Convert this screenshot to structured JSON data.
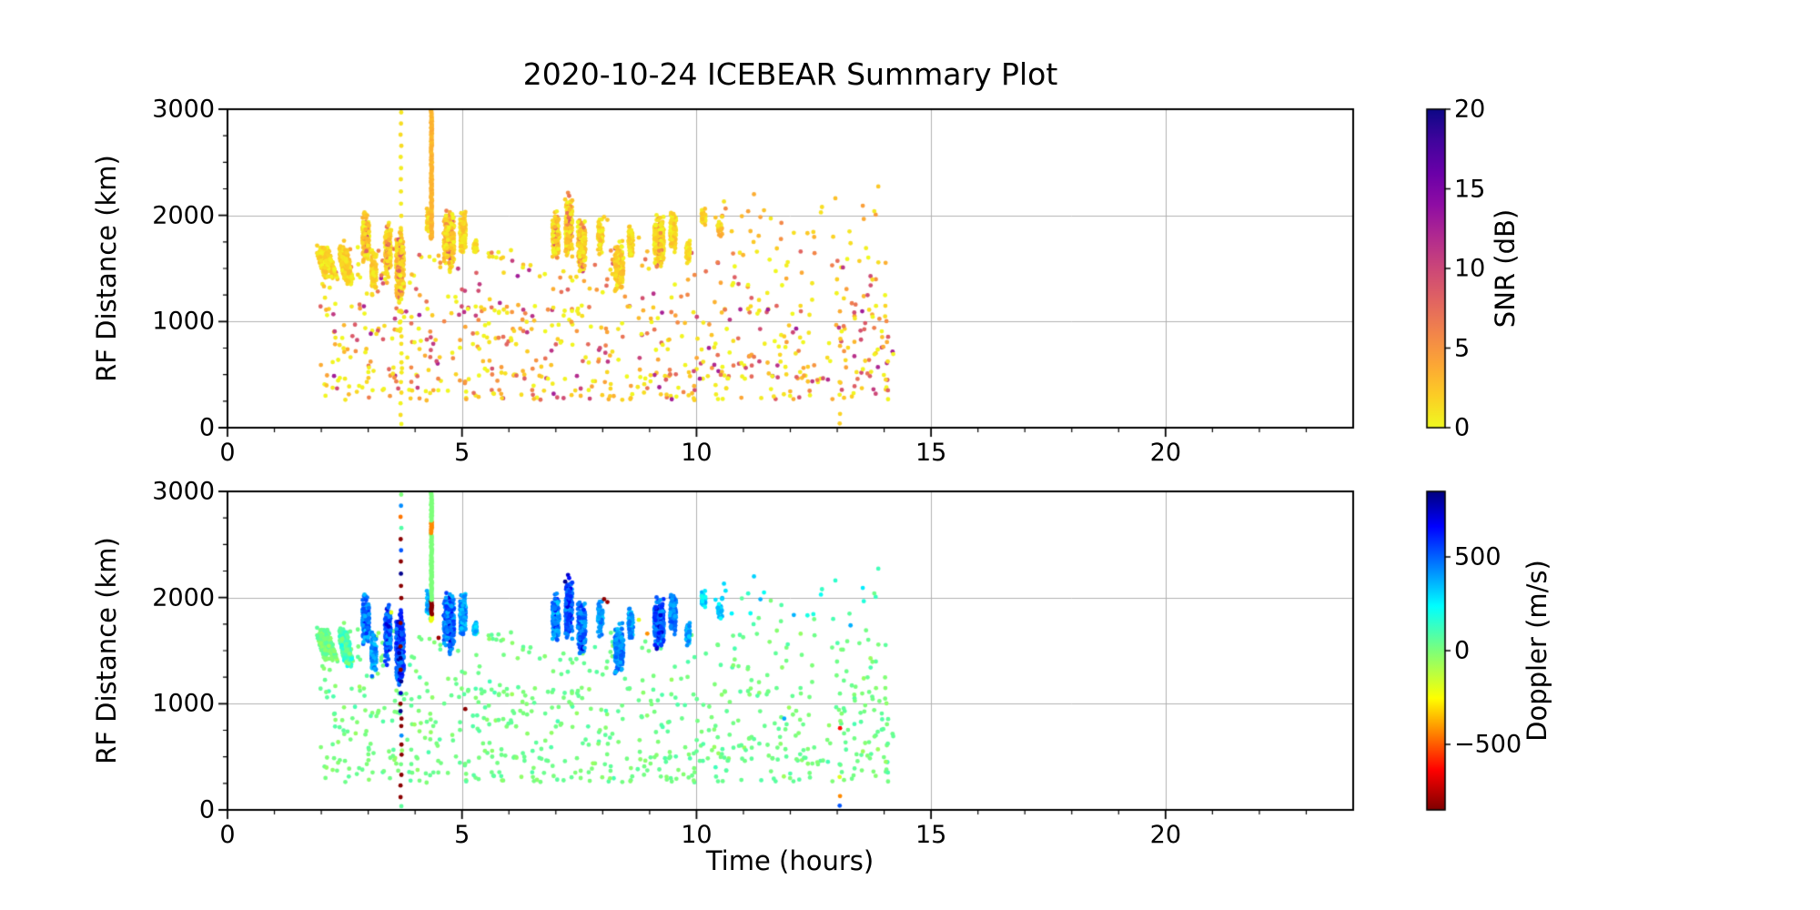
{
  "chart_data": {
    "type": "scatter",
    "title": "2020-10-24 ICEBEAR Summary Plot",
    "xlabel": "Time (hours)",
    "ylabel": "RF Distance (km)",
    "xlim": [
      0,
      24
    ],
    "ylim": [
      0,
      3000
    ],
    "xticks": [
      0,
      5,
      10,
      15,
      20
    ],
    "xtick_labels": [
      "0",
      "5",
      "10",
      "15",
      "20"
    ],
    "yticks": [
      0,
      1000,
      2000,
      3000
    ],
    "ytick_labels": [
      "0",
      "1000",
      "2000",
      "3000"
    ],
    "x_minor_step": 1,
    "y_minor_step": 250,
    "grid": true,
    "grid_color": "#b0b0b0",
    "seed": 20201024,
    "marker_radius": 2.4,
    "panels": [
      {
        "id": "snr",
        "color_field": "snr",
        "colorbar": {
          "label": "SNR (dB)",
          "ticks": [
            0,
            5,
            10,
            15,
            20
          ],
          "tick_labels": [
            "0",
            "5",
            "10",
            "15",
            "20"
          ],
          "vmin": 0,
          "vmax": 20,
          "colormap": "plasma_r"
        }
      },
      {
        "id": "doppler",
        "color_field": "doppler",
        "colorbar": {
          "label": "Doppler (m/s)",
          "ticks": [
            -500,
            0,
            500
          ],
          "tick_labels": [
            "−500",
            "0",
            "500"
          ],
          "vmin": -850,
          "vmax": 850,
          "colormap": "jet_r"
        }
      }
    ],
    "colormaps": {
      "plasma": [
        [
          0,
          "#0d0887"
        ],
        [
          0.1,
          "#41049d"
        ],
        [
          0.2,
          "#6a00a8"
        ],
        [
          0.3,
          "#8f0da4"
        ],
        [
          0.4,
          "#b12a90"
        ],
        [
          0.5,
          "#cc4778"
        ],
        [
          0.6,
          "#e16462"
        ],
        [
          0.7,
          "#f2844b"
        ],
        [
          0.8,
          "#fca636"
        ],
        [
          0.9,
          "#fcce25"
        ],
        [
          1,
          "#f0f921"
        ]
      ],
      "jet": [
        [
          0,
          "#00007f"
        ],
        [
          0.11,
          "#0000ff"
        ],
        [
          0.36,
          "#00ffff"
        ],
        [
          0.5,
          "#7dff7a"
        ],
        [
          0.65,
          "#ffff00"
        ],
        [
          0.875,
          "#ff0000"
        ],
        [
          1,
          "#7f0000"
        ]
      ]
    },
    "clusters": [
      {
        "t": 2.1,
        "ts": 0.28,
        "km": 1560,
        "kh": 210,
        "n": 240,
        "snr": [
          0,
          3
        ],
        "dop": [
          -60,
          80
        ],
        "tilt": 0.14
      },
      {
        "t": 2.52,
        "ts": 0.2,
        "km": 1530,
        "kh": 240,
        "n": 190,
        "snr": [
          0,
          3
        ],
        "dop": [
          -20,
          230
        ],
        "tilt": 0.1
      },
      {
        "t": 2.95,
        "ts": 0.14,
        "km": 1800,
        "kh": 290,
        "n": 200,
        "snr": [
          0,
          3.5
        ],
        "dop": [
          320,
          560
        ],
        "core": true
      },
      {
        "t": 3.12,
        "ts": 0.1,
        "km": 1480,
        "kh": 250,
        "n": 110,
        "snr": [
          0,
          3
        ],
        "dop": [
          300,
          520
        ]
      },
      {
        "t": 3.42,
        "ts": 0.12,
        "km": 1650,
        "kh": 330,
        "n": 170,
        "snr": [
          0,
          3.5
        ],
        "dop": [
          380,
          600
        ],
        "core": true
      },
      {
        "t": 3.68,
        "ts": 0.16,
        "km": 1500,
        "kh": 400,
        "n": 300,
        "snr": [
          0,
          4
        ],
        "dop": [
          420,
          650
        ],
        "core": true
      },
      {
        "t": 4.3,
        "ts": 0.1,
        "km": 1950,
        "kh": 180,
        "n": 80,
        "snr": [
          0,
          3
        ],
        "dop": [
          260,
          460
        ]
      },
      {
        "t": 4.72,
        "ts": 0.22,
        "km": 1760,
        "kh": 330,
        "n": 260,
        "snr": [
          0,
          4
        ],
        "dop": [
          360,
          590
        ],
        "core": true
      },
      {
        "t": 5.02,
        "ts": 0.12,
        "km": 1850,
        "kh": 270,
        "n": 130,
        "snr": [
          0,
          3
        ],
        "dop": [
          300,
          520
        ]
      },
      {
        "t": 5.28,
        "ts": 0.08,
        "km": 1700,
        "kh": 90,
        "n": 30,
        "snr": [
          0,
          2.5
        ],
        "dop": [
          250,
          420
        ]
      },
      {
        "t": 7.0,
        "ts": 0.14,
        "km": 1800,
        "kh": 300,
        "n": 160,
        "snr": [
          0,
          3.5
        ],
        "dop": [
          300,
          520
        ],
        "core": true
      },
      {
        "t": 7.28,
        "ts": 0.14,
        "km": 1900,
        "kh": 340,
        "n": 200,
        "snr": [
          0,
          3.5
        ],
        "dop": [
          380,
          600
        ],
        "core": true
      },
      {
        "t": 7.55,
        "ts": 0.16,
        "km": 1700,
        "kh": 350,
        "n": 190,
        "snr": [
          0,
          4
        ],
        "dop": [
          350,
          570
        ],
        "core": true
      },
      {
        "t": 7.95,
        "ts": 0.1,
        "km": 1800,
        "kh": 200,
        "n": 70,
        "snr": [
          0,
          3
        ],
        "dop": [
          300,
          500
        ]
      },
      {
        "t": 8.35,
        "ts": 0.18,
        "km": 1520,
        "kh": 300,
        "n": 160,
        "snr": [
          0,
          3.5
        ],
        "dop": [
          330,
          550
        ]
      },
      {
        "t": 8.6,
        "ts": 0.1,
        "km": 1750,
        "kh": 200,
        "n": 80,
        "snr": [
          0,
          3
        ],
        "dop": [
          300,
          500
        ]
      },
      {
        "t": 9.2,
        "ts": 0.2,
        "km": 1760,
        "kh": 270,
        "n": 280,
        "snr": [
          0,
          2.5
        ],
        "dop": [
          380,
          620
        ],
        "core": true
      },
      {
        "t": 9.5,
        "ts": 0.12,
        "km": 1850,
        "kh": 230,
        "n": 110,
        "snr": [
          0,
          3
        ],
        "dop": [
          350,
          550
        ]
      },
      {
        "t": 9.82,
        "ts": 0.08,
        "km": 1650,
        "kh": 140,
        "n": 45,
        "snr": [
          0,
          2.5
        ],
        "dop": [
          300,
          460
        ]
      },
      {
        "t": 10.15,
        "ts": 0.08,
        "km": 1975,
        "kh": 110,
        "n": 30,
        "snr": [
          0,
          3
        ],
        "dop": [
          200,
          400
        ]
      },
      {
        "t": 10.5,
        "ts": 0.1,
        "km": 1900,
        "kh": 130,
        "n": 22,
        "snr": [
          0,
          4
        ],
        "dop": [
          220,
          400
        ]
      }
    ],
    "background": {
      "t": [
        1.95,
        14.2
      ],
      "n": 720,
      "km_bands": [
        [
          450,
          1150,
          0.53
        ],
        [
          1050,
          1700,
          0.28
        ],
        [
          260,
          500,
          0.19
        ]
      ],
      "snr_max": 13,
      "snr_pow": 2.3,
      "dop_mean": 25,
      "dop_sd": 60
    },
    "bottom_row": {
      "t": [
        2.2,
        13.6
      ],
      "km": [
        255,
        320
      ],
      "n": 26,
      "snr": [
        0,
        4
      ],
      "dop": [
        -40,
        80
      ]
    },
    "high_sparse": {
      "t": [
        9.9,
        14.1
      ],
      "km": [
        1700,
        2300
      ],
      "n": 30,
      "snr": [
        0,
        6
      ],
      "dop": [
        0,
        380
      ]
    },
    "lines": {
      "dashed": {
        "t": 3.7,
        "t_jitter": 0.012,
        "snr": [
          0,
          1.6
        ],
        "points": [
          [
            2970,
            0
          ],
          [
            2865,
            430
          ],
          [
            2760,
            -460
          ],
          [
            2655,
            80
          ],
          [
            2550,
            -830
          ],
          [
            2445,
            520
          ],
          [
            2340,
            -830
          ],
          [
            2225,
            830
          ],
          [
            2110,
            -830
          ],
          [
            1995,
            -830
          ],
          [
            1880,
            600
          ],
          [
            1760,
            -830
          ],
          [
            1650,
            500
          ],
          [
            1540,
            -830
          ],
          [
            1430,
            830
          ],
          [
            1320,
            -830
          ],
          [
            1210,
            830
          ],
          [
            1100,
            760
          ],
          [
            1000,
            -830
          ],
          [
            930,
            830
          ],
          [
            860,
            -830
          ],
          [
            790,
            -830
          ],
          [
            700,
            430
          ],
          [
            615,
            -830
          ],
          [
            520,
            -830
          ],
          [
            430,
            20
          ],
          [
            330,
            -830
          ],
          [
            230,
            -830
          ],
          [
            120,
            -830
          ],
          [
            35,
            60
          ]
        ]
      },
      "solid": {
        "t": 4.35,
        "t_jitter": 0.012,
        "km_from": 1780,
        "km_to": 3005,
        "step": 9,
        "snr_mean": 3.2,
        "snr_sd": 1.0,
        "segments": [
          [
            1780,
            1840,
            -220
          ],
          [
            1840,
            1975,
            -830
          ],
          [
            1975,
            2600,
            0
          ],
          [
            2600,
            2725,
            -430
          ],
          [
            2725,
            3005,
            0
          ]
        ]
      },
      "short_dashed": {
        "t": 13.06,
        "t_jitter": 0.012,
        "snr": [
          0,
          2
        ],
        "points": [
          [
            430,
            60
          ],
          [
            310,
            -190
          ],
          [
            130,
            -430
          ],
          [
            40,
            520
          ]
        ]
      }
    },
    "outliers": [
      [
        3.49,
        1860,
        1.2,
        -190
      ],
      [
        4.5,
        1620,
        3,
        -800
      ],
      [
        5.07,
        950,
        4,
        -830
      ],
      [
        7.2,
        2150,
        2,
        830
      ],
      [
        8.03,
        1985,
        2,
        -830
      ],
      [
        8.1,
        1958,
        2.5,
        -800
      ],
      [
        8.77,
        1790,
        2,
        -200
      ],
      [
        8.95,
        1660,
        3,
        -420
      ],
      [
        10.75,
        1850,
        2,
        250
      ],
      [
        11.87,
        860,
        2,
        380
      ],
      [
        13.06,
        770,
        3,
        -620
      ]
    ]
  }
}
